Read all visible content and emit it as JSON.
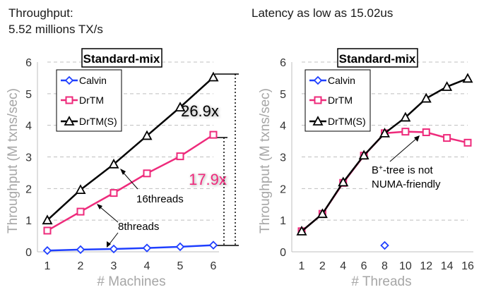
{
  "header": {
    "left_line1": "Throughput:",
    "left_line2": "5.52 millions TX/s",
    "right_line1": "Latency as low as 15.02us"
  },
  "colors": {
    "calvin": "#1f3fff",
    "drtm": "#ee2a7b",
    "drtms": "#000000",
    "axis_label": "#a6a6a6",
    "grid": "#bfbfbf"
  },
  "chart_data": [
    {
      "type": "line",
      "title": "Standard-mix",
      "xlabel": "# Machines",
      "ylabel": "Throughput (M txns/sec)",
      "ylim": [
        0,
        6
      ],
      "yticks": [
        "0",
        "1",
        "2",
        "3",
        "4",
        "5",
        "6"
      ],
      "xticks": [
        "1",
        "2",
        "3",
        "4",
        "5",
        "6"
      ],
      "grid": "horizontal-dashed",
      "legend_position": "top-left",
      "x": [
        1,
        2,
        3,
        4,
        5,
        6
      ],
      "series": [
        {
          "name": "Calvin",
          "marker": "diamond",
          "values": [
            0.04,
            0.07,
            0.09,
            0.12,
            0.16,
            0.21
          ]
        },
        {
          "name": "DrTM",
          "marker": "square",
          "values": [
            0.67,
            1.27,
            1.86,
            2.48,
            3.02,
            3.7
          ]
        },
        {
          "name": "DrTM(S)",
          "marker": "triangle",
          "values": [
            1.0,
            1.96,
            2.77,
            3.67,
            4.57,
            5.52
          ]
        }
      ],
      "annotations": {
        "speedup_s": "26.9x",
        "speedup": "17.9x",
        "threads16": "16threads",
        "threads8": "8threads"
      }
    },
    {
      "type": "line",
      "title": "Standard-mix",
      "xlabel": "# Threads",
      "ylabel": "Throughput (M txns/sec)",
      "ylim": [
        0,
        6
      ],
      "yticks": [
        "0",
        "1",
        "2",
        "3",
        "4",
        "5",
        "6"
      ],
      "xticks": [
        "1",
        "2",
        "4",
        "6",
        "8",
        "10",
        "12",
        "14",
        "16"
      ],
      "grid": "horizontal-dashed",
      "legend_position": "top-left",
      "x": [
        "1",
        "2",
        "4",
        "6",
        "8",
        "10",
        "12",
        "14",
        "16"
      ],
      "series": [
        {
          "name": "Calvin",
          "marker": "diamond",
          "values": [
            null,
            null,
            null,
            null,
            0.2,
            null,
            null,
            null,
            null
          ]
        },
        {
          "name": "DrTM",
          "marker": "square",
          "values": [
            0.65,
            1.2,
            2.18,
            3.04,
            3.75,
            3.8,
            3.78,
            3.6,
            3.45
          ]
        },
        {
          "name": "DrTM(S)",
          "marker": "triangle",
          "values": [
            0.65,
            1.2,
            2.2,
            3.05,
            3.75,
            4.25,
            4.85,
            5.22,
            5.48
          ]
        }
      ],
      "annotations": {
        "note_line1_prefix": "B",
        "note_line1_sup": "+",
        "note_line1_rest": "-tree is not",
        "note_line2": "NUMA-friendly"
      }
    }
  ]
}
